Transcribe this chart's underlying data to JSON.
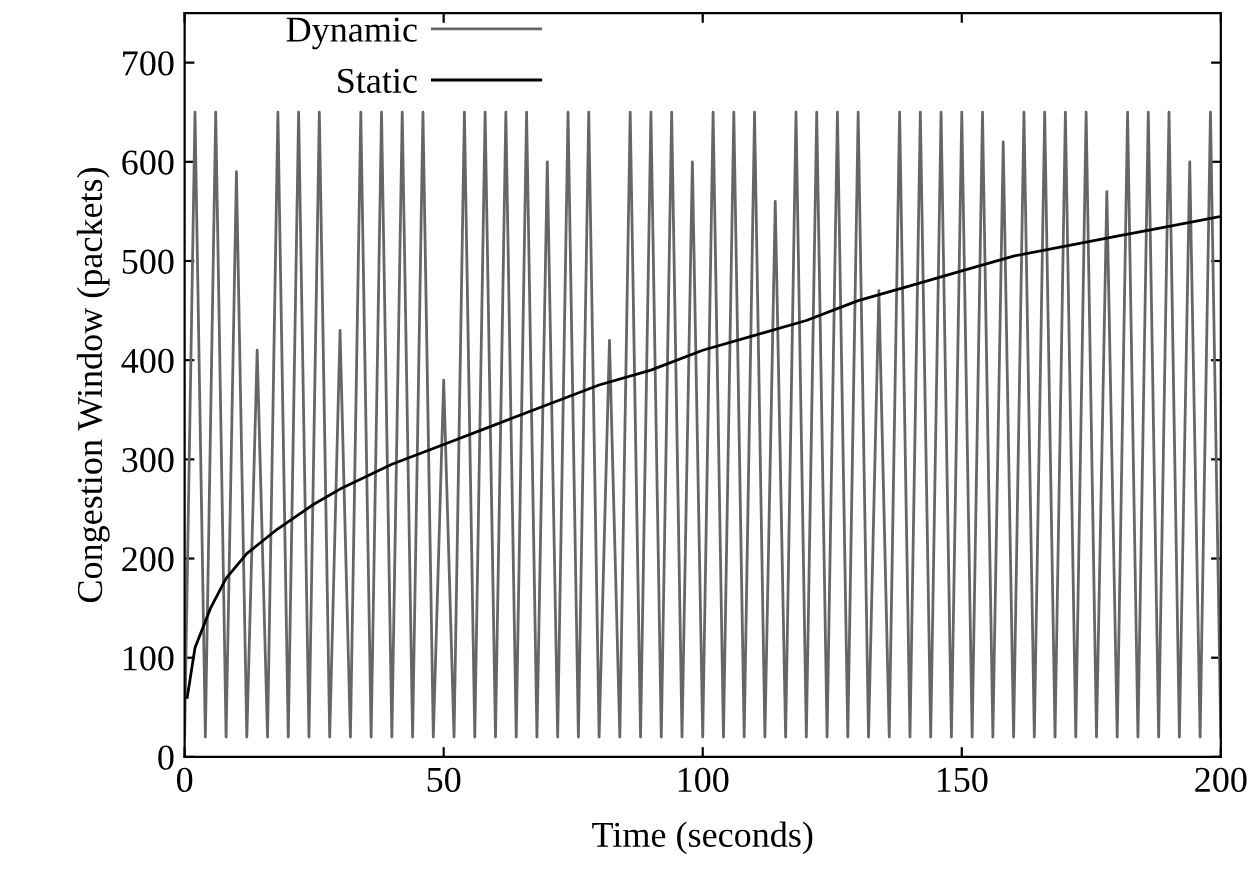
{
  "chart_data": {
    "type": "line",
    "xlabel": "Time (seconds)",
    "ylabel": "Congestion Window (packets)",
    "xlim": [
      0,
      200
    ],
    "ylim": [
      0,
      750
    ],
    "xticks": [
      0,
      50,
      100,
      150,
      200
    ],
    "yticks": [
      0,
      100,
      200,
      300,
      400,
      500,
      600,
      700
    ],
    "grid": false,
    "legend": "top left",
    "line_style": "solid",
    "marker": "none",
    "series": [
      {
        "name": "Dynamic",
        "color": "#666666",
        "x": [
          0,
          2,
          4,
          6,
          8,
          10,
          12,
          14,
          16,
          18,
          20,
          22,
          24,
          26,
          28,
          30,
          32,
          34,
          36,
          38,
          40,
          42,
          44,
          46,
          48,
          50,
          52,
          54,
          56,
          58,
          60,
          62,
          64,
          66,
          68,
          70,
          72,
          74,
          76,
          78,
          80,
          82,
          84,
          86,
          88,
          90,
          92,
          94,
          96,
          98,
          100,
          102,
          104,
          106,
          108,
          110,
          112,
          114,
          116,
          118,
          120,
          122,
          124,
          126,
          128,
          130,
          132,
          134,
          136,
          138,
          140,
          142,
          144,
          146,
          148,
          150,
          152,
          154,
          156,
          158,
          160,
          162,
          164,
          166,
          168,
          170,
          172,
          174,
          176,
          178,
          180,
          182,
          184,
          186,
          188,
          190,
          192,
          194,
          196,
          198,
          200
        ],
        "values": [
          20,
          650,
          20,
          650,
          20,
          590,
          20,
          410,
          20,
          650,
          20,
          650,
          20,
          650,
          20,
          430,
          20,
          650,
          20,
          650,
          20,
          650,
          20,
          650,
          20,
          380,
          20,
          650,
          20,
          650,
          20,
          650,
          20,
          650,
          20,
          600,
          20,
          650,
          20,
          650,
          20,
          420,
          20,
          650,
          20,
          650,
          20,
          650,
          20,
          600,
          20,
          650,
          20,
          650,
          20,
          650,
          20,
          560,
          20,
          650,
          20,
          650,
          20,
          650,
          20,
          650,
          20,
          470,
          20,
          650,
          20,
          650,
          20,
          650,
          20,
          650,
          20,
          650,
          20,
          620,
          20,
          650,
          20,
          650,
          20,
          650,
          20,
          650,
          20,
          570,
          20,
          650,
          20,
          650,
          20,
          650,
          20,
          600,
          20,
          650,
          20
        ]
      },
      {
        "name": "Static",
        "color": "#000000",
        "x": [
          0.5,
          2,
          5,
          8,
          12,
          18,
          25,
          30,
          40,
          50,
          60,
          70,
          80,
          90,
          100,
          110,
          120,
          130,
          140,
          150,
          160,
          170,
          180,
          190,
          200
        ],
        "values": [
          60,
          110,
          150,
          180,
          205,
          230,
          255,
          270,
          295,
          315,
          335,
          355,
          375,
          390,
          410,
          425,
          440,
          460,
          475,
          490,
          505,
          515,
          525,
          535,
          545
        ]
      }
    ]
  }
}
